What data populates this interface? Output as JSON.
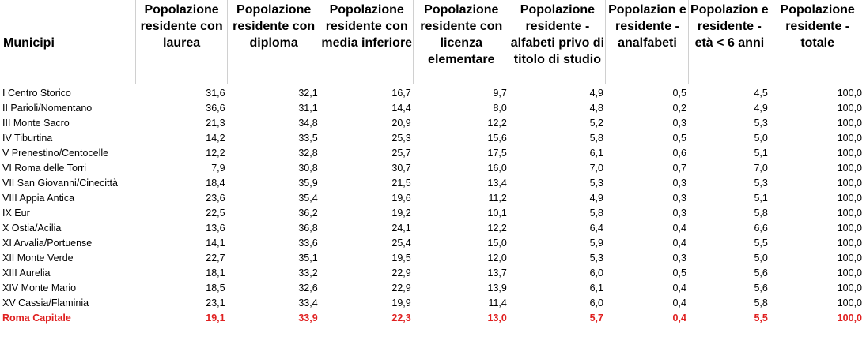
{
  "table": {
    "headers": [
      "Municipi",
      "Popolazione residente con laurea",
      "Popolazione residente con diploma",
      "Popolazione residente con media inferiore",
      "Popolazione residente con licenza elementare",
      "Popolazione residente - alfabeti privo di titolo di studio",
      "Popolazion e residente - analfabeti",
      "Popolazion e residente - età < 6 anni",
      "Popolazione residente - totale"
    ],
    "rows": [
      [
        "I Centro Storico",
        "31,6",
        "32,1",
        "16,7",
        "9,7",
        "4,9",
        "0,5",
        "4,5",
        "100,0"
      ],
      [
        "II Parioli/Nomentano",
        "36,6",
        "31,1",
        "14,4",
        "8,0",
        "4,8",
        "0,2",
        "4,9",
        "100,0"
      ],
      [
        "III Monte Sacro",
        "21,3",
        "34,8",
        "20,9",
        "12,2",
        "5,2",
        "0,3",
        "5,3",
        "100,0"
      ],
      [
        "IV Tiburtina",
        "14,2",
        "33,5",
        "25,3",
        "15,6",
        "5,8",
        "0,5",
        "5,0",
        "100,0"
      ],
      [
        "V Prenestino/Centocelle",
        "12,2",
        "32,8",
        "25,7",
        "17,5",
        "6,1",
        "0,6",
        "5,1",
        "100,0"
      ],
      [
        "VI Roma delle Torri",
        "7,9",
        "30,8",
        "30,7",
        "16,0",
        "7,0",
        "0,7",
        "7,0",
        "100,0"
      ],
      [
        "VII San Giovanni/Cinecittà",
        "18,4",
        "35,9",
        "21,5",
        "13,4",
        "5,3",
        "0,3",
        "5,3",
        "100,0"
      ],
      [
        "VIII Appia Antica",
        "23,6",
        "35,4",
        "19,6",
        "11,2",
        "4,9",
        "0,3",
        "5,1",
        "100,0"
      ],
      [
        "IX Eur",
        "22,5",
        "36,2",
        "19,2",
        "10,1",
        "5,8",
        "0,3",
        "5,8",
        "100,0"
      ],
      [
        "X Ostia/Acilia",
        "13,6",
        "36,8",
        "24,1",
        "12,2",
        "6,4",
        "0,4",
        "6,6",
        "100,0"
      ],
      [
        "XI Arvalia/Portuense",
        "14,1",
        "33,6",
        "25,4",
        "15,0",
        "5,9",
        "0,4",
        "5,5",
        "100,0"
      ],
      [
        "XII Monte Verde",
        "22,7",
        "35,1",
        "19,5",
        "12,0",
        "5,3",
        "0,3",
        "5,0",
        "100,0"
      ],
      [
        "XIII Aurelia",
        "18,1",
        "33,2",
        "22,9",
        "13,7",
        "6,0",
        "0,5",
        "5,6",
        "100,0"
      ],
      [
        "XIV Monte Mario",
        "18,5",
        "32,6",
        "22,9",
        "13,9",
        "6,1",
        "0,4",
        "5,6",
        "100,0"
      ],
      [
        "XV Cassia/Flaminia",
        "23,1",
        "33,4",
        "19,9",
        "11,4",
        "6,0",
        "0,4",
        "5,8",
        "100,0"
      ]
    ],
    "total_row": [
      "Roma Capitale",
      "19,1",
      "33,9",
      "22,3",
      "13,0",
      "5,7",
      "0,4",
      "5,5",
      "100,0"
    ],
    "colors": {
      "total_text": "#e02020",
      "grid_line": "#d0d0d0"
    }
  }
}
